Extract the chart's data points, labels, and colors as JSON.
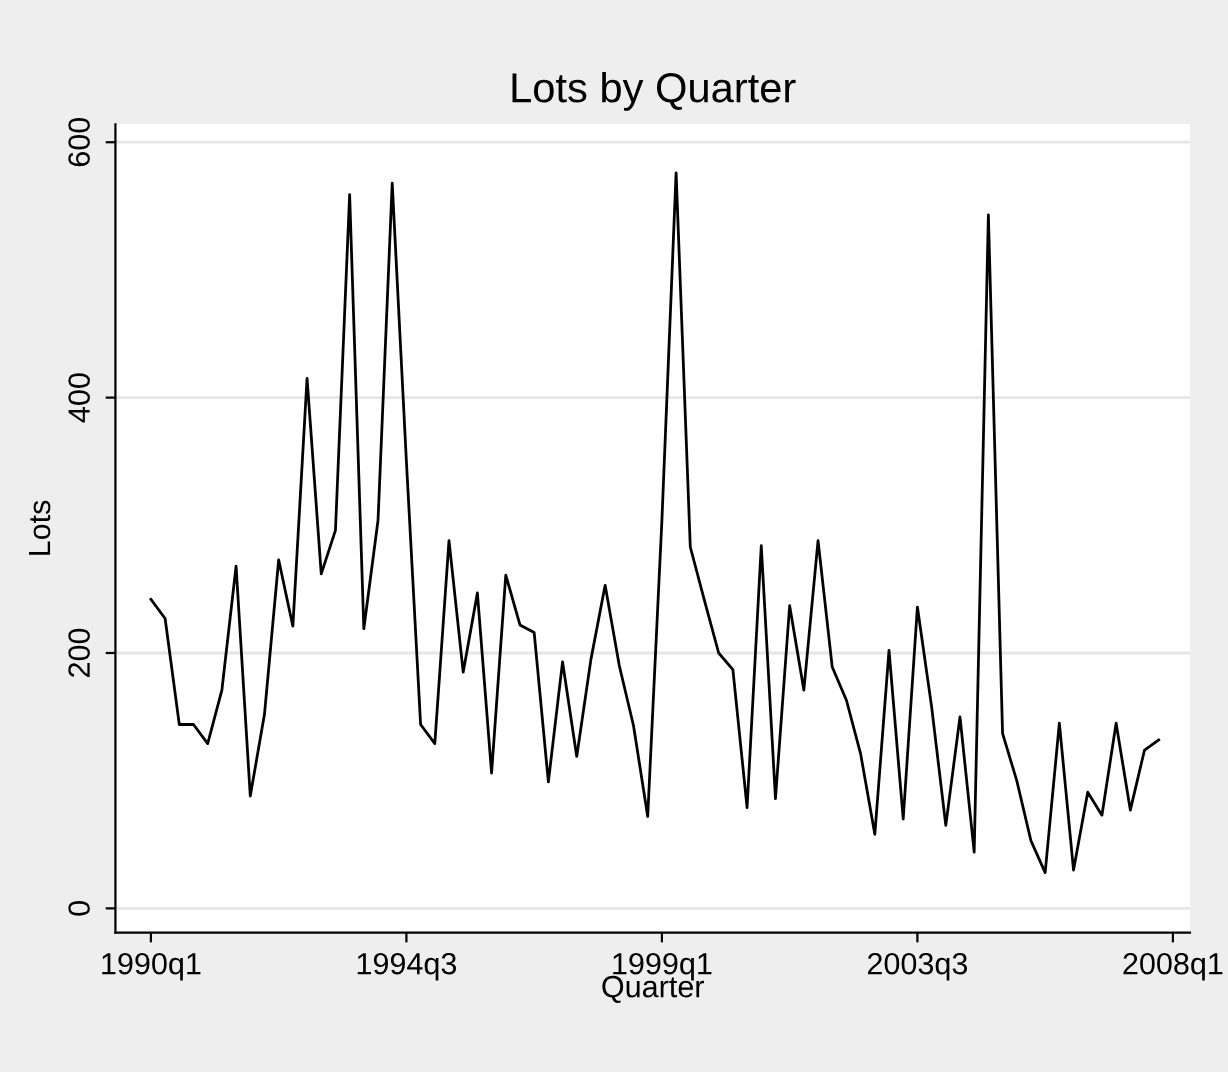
{
  "chart_data": {
    "type": "line",
    "title": "Lots by Quarter",
    "xlabel": "Quarter",
    "ylabel": "Lots",
    "categories": [
      "1990q1",
      null,
      null,
      null,
      null,
      null,
      null,
      null,
      null,
      null,
      null,
      null,
      null,
      null,
      null,
      null,
      null,
      null,
      "1994q3",
      null,
      null,
      null,
      null,
      null,
      null,
      null,
      null,
      null,
      null,
      null,
      null,
      null,
      null,
      null,
      null,
      null,
      "1999q1",
      null,
      null,
      null,
      null,
      null,
      null,
      null,
      null,
      null,
      null,
      null,
      null,
      null,
      null,
      null,
      null,
      null,
      "2003q3",
      null,
      null,
      null,
      null,
      null,
      null,
      null,
      null,
      null,
      null,
      null,
      null,
      null,
      null,
      null,
      null,
      null,
      "2008q1"
    ],
    "series": [
      {
        "color": "#000000",
        "values": [
          242,
          227,
          144,
          144,
          129,
          171,
          268,
          88,
          152,
          273,
          221,
          415,
          262,
          296,
          559,
          219,
          304,
          568,
          350,
          144,
          129,
          288,
          185,
          247,
          106,
          261,
          222,
          216,
          99,
          193,
          119,
          195,
          253,
          190,
          143,
          72,
          304,
          576,
          283,
          241,
          200,
          187,
          79,
          284,
          86,
          237,
          171,
          288,
          189,
          163,
          121,
          58,
          202,
          70,
          236,
          158,
          65,
          150,
          44,
          543,
          137,
          100,
          53,
          28,
          145,
          30,
          91,
          73,
          145,
          77,
          124,
          132,
          null
        ]
      }
    ],
    "ylim": [
      -19,
      614
    ],
    "yticks": [
      0,
      200,
      400,
      600
    ],
    "grid": "y",
    "line_style": "solid"
  }
}
